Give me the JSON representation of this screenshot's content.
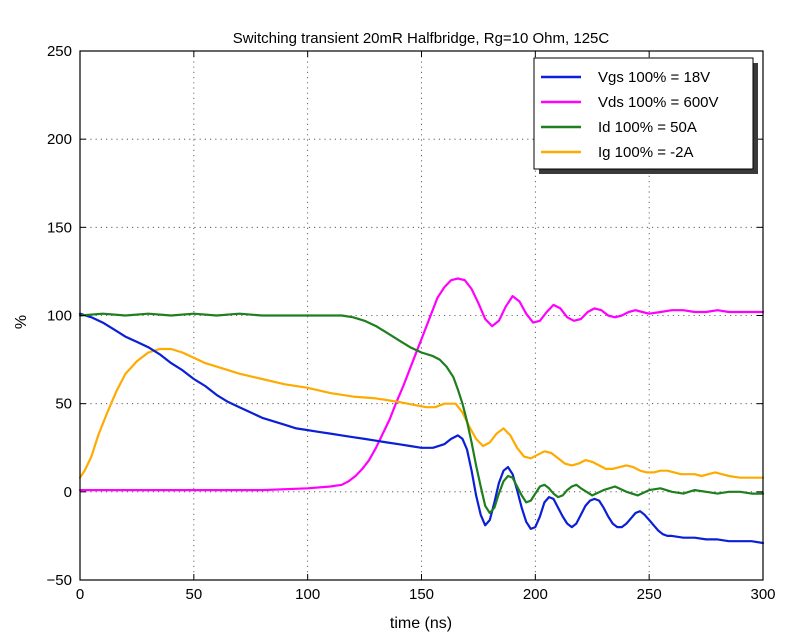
{
  "chart_data": {
    "type": "line",
    "title": "Switching transient 20mR Halfbridge, Rg=10 Ohm, 125C",
    "xlabel": "time (ns)",
    "ylabel": "%",
    "xlim": [
      0,
      300
    ],
    "ylim": [
      -50,
      250
    ],
    "x_ticks": [
      "0",
      "50",
      "100",
      "150",
      "200",
      "250",
      "300"
    ],
    "y_ticks": [
      "−50",
      "0",
      "50",
      "100",
      "150",
      "200",
      "250"
    ],
    "grid": true,
    "legend_position": "top-right",
    "series": [
      {
        "name": "Vgs 100% = 18V",
        "color": "#0b1fd6",
        "x": [
          0,
          5,
          10,
          15,
          20,
          25,
          30,
          35,
          40,
          45,
          50,
          55,
          60,
          65,
          70,
          75,
          80,
          85,
          90,
          95,
          100,
          105,
          110,
          115,
          120,
          125,
          130,
          135,
          140,
          145,
          150,
          155,
          160,
          163,
          166,
          168,
          170,
          172,
          174,
          176,
          178,
          180,
          182,
          184,
          186,
          188,
          190,
          192,
          194,
          196,
          198,
          200,
          202,
          204,
          206,
          208,
          210,
          212,
          214,
          216,
          218,
          220,
          222,
          224,
          226,
          228,
          230,
          232,
          234,
          236,
          238,
          240,
          242,
          244,
          246,
          248,
          250,
          252,
          254,
          256,
          258,
          260,
          265,
          270,
          275,
          280,
          285,
          290,
          295,
          300
        ],
        "y": [
          101,
          99,
          96,
          92,
          88,
          85,
          82,
          78,
          73,
          69,
          64,
          60,
          55,
          51,
          48,
          45,
          42,
          40,
          38,
          36,
          35,
          34,
          33,
          32,
          31,
          30,
          29,
          28,
          27,
          26,
          25,
          25,
          27,
          30,
          32,
          30,
          24,
          12,
          -2,
          -13,
          -19,
          -16,
          -6,
          5,
          12,
          14,
          10,
          1,
          -9,
          -17,
          -21,
          -20,
          -14,
          -6,
          -3,
          -4,
          -9,
          -14,
          -18,
          -20,
          -18,
          -13,
          -8,
          -5,
          -4,
          -5,
          -9,
          -14,
          -18,
          -20,
          -20,
          -18,
          -15,
          -12,
          -11,
          -13,
          -16,
          -19,
          -22,
          -24,
          -25,
          -25,
          -26,
          -26,
          -27,
          -27,
          -28,
          -28,
          -28,
          -29
        ]
      },
      {
        "name": "Vds 100% = 600V",
        "color": "#ff00ff",
        "x": [
          0,
          20,
          40,
          60,
          80,
          100,
          110,
          115,
          118,
          121,
          124,
          127,
          130,
          133,
          136,
          139,
          142,
          145,
          148,
          151,
          154,
          157,
          160,
          163,
          166,
          169,
          172,
          175,
          178,
          181,
          184,
          187,
          190,
          193,
          196,
          199,
          202,
          205,
          208,
          211,
          214,
          217,
          220,
          223,
          226,
          229,
          232,
          235,
          238,
          241,
          244,
          247,
          250,
          255,
          260,
          265,
          270,
          275,
          280,
          285,
          290,
          295,
          300
        ],
        "y": [
          1,
          1,
          1,
          1,
          1,
          2,
          3,
          4,
          6,
          9,
          13,
          18,
          25,
          33,
          41,
          51,
          60,
          70,
          80,
          90,
          100,
          110,
          116,
          120,
          121,
          120,
          115,
          107,
          98,
          94,
          97,
          105,
          111,
          108,
          101,
          96,
          97,
          102,
          106,
          104,
          99,
          97,
          98,
          102,
          104,
          103,
          100,
          99,
          100,
          102,
          103,
          102,
          101,
          102,
          103,
          103,
          102,
          102,
          103,
          102,
          102,
          102,
          102
        ]
      },
      {
        "name": "Id 100% = 50A",
        "color": "#1e7f1e",
        "x": [
          0,
          10,
          20,
          30,
          40,
          50,
          60,
          70,
          80,
          90,
          100,
          110,
          115,
          120,
          125,
          130,
          135,
          140,
          145,
          150,
          155,
          158,
          161,
          164,
          166,
          168,
          170,
          172,
          174,
          176,
          178,
          180,
          182,
          184,
          186,
          188,
          190,
          192,
          194,
          196,
          198,
          200,
          202,
          204,
          206,
          208,
          210,
          212,
          214,
          216,
          218,
          220,
          225,
          230,
          235,
          240,
          245,
          250,
          255,
          260,
          265,
          270,
          275,
          280,
          285,
          290,
          295,
          300
        ],
        "y": [
          100,
          101,
          100,
          101,
          100,
          101,
          100,
          101,
          100,
          100,
          100,
          100,
          100,
          99,
          97,
          94,
          90,
          86,
          82,
          79,
          77,
          75,
          71,
          65,
          58,
          50,
          40,
          28,
          15,
          3,
          -8,
          -12,
          -9,
          -1,
          6,
          9,
          8,
          3,
          -2,
          -6,
          -5,
          -1,
          3,
          4,
          2,
          -1,
          -3,
          -2,
          1,
          3,
          4,
          2,
          -2,
          1,
          3,
          0,
          -2,
          1,
          2,
          0,
          -1,
          1,
          0,
          -1,
          0,
          0,
          -1,
          -1
        ]
      },
      {
        "name": "Ig 100% = -2A",
        "color": "#ffaa00",
        "x": [
          0,
          2,
          5,
          8,
          12,
          16,
          20,
          25,
          30,
          35,
          40,
          45,
          50,
          55,
          60,
          70,
          80,
          90,
          100,
          110,
          120,
          130,
          140,
          148,
          152,
          156,
          160,
          165,
          168,
          171,
          174,
          177,
          180,
          183,
          186,
          189,
          192,
          195,
          198,
          201,
          204,
          207,
          210,
          213,
          216,
          219,
          222,
          225,
          228,
          231,
          234,
          237,
          240,
          243,
          246,
          249,
          252,
          255,
          258,
          261,
          264,
          267,
          270,
          273,
          276,
          279,
          282,
          285,
          290,
          295,
          300
        ],
        "y": [
          8,
          12,
          20,
          32,
          45,
          57,
          67,
          74,
          79,
          81,
          81,
          79,
          76,
          73,
          71,
          67,
          64,
          61,
          59,
          56,
          54,
          53,
          51,
          49,
          48,
          48,
          50,
          50,
          45,
          37,
          30,
          26,
          28,
          33,
          36,
          32,
          25,
          20,
          19,
          21,
          23,
          22,
          19,
          16,
          15,
          16,
          18,
          17,
          15,
          13,
          13,
          14,
          15,
          14,
          12,
          11,
          11,
          12,
          12,
          11,
          10,
          10,
          10,
          9,
          10,
          11,
          10,
          9,
          8,
          8,
          8
        ]
      }
    ]
  }
}
